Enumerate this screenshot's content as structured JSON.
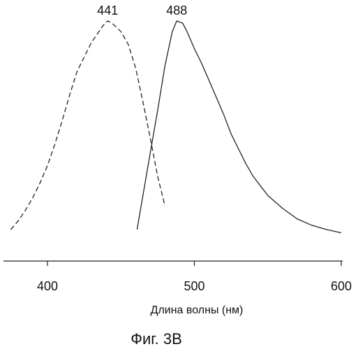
{
  "chart_data": {
    "type": "line",
    "xlabel": "Длина волны (нм)",
    "ylabel": "",
    "title": "",
    "caption": "Фиг. 3B",
    "xlim": [
      374,
      600
    ],
    "ylim": [
      0,
      1
    ],
    "xticks": [
      400,
      500,
      600
    ],
    "y_axis_visible": false,
    "grid": false,
    "legend": "none",
    "series": [
      {
        "style": "dashed",
        "color": "#222222",
        "peak_label": "441",
        "x": [
          375,
          380,
          385,
          390,
          395,
          400,
          405,
          410,
          415,
          420,
          425,
          430,
          435,
          438,
          441,
          444,
          447,
          450,
          455,
          460,
          465,
          470,
          475,
          480
        ],
        "y": [
          0.02,
          0.06,
          0.11,
          0.17,
          0.24,
          0.32,
          0.42,
          0.53,
          0.65,
          0.76,
          0.83,
          0.9,
          0.95,
          0.98,
          1.0,
          0.99,
          0.97,
          0.95,
          0.89,
          0.78,
          0.62,
          0.45,
          0.27,
          0.13
        ]
      },
      {
        "style": "solid",
        "color": "#222222",
        "peak_label": "488",
        "x": [
          461,
          465,
          470,
          475,
          480,
          485,
          488,
          492,
          495,
          500,
          505,
          510,
          515,
          520,
          525,
          530,
          535,
          540,
          550,
          560,
          570,
          580,
          590,
          600
        ],
        "y": [
          0.02,
          0.18,
          0.38,
          0.58,
          0.79,
          0.95,
          1.0,
          0.99,
          0.95,
          0.87,
          0.8,
          0.72,
          0.64,
          0.56,
          0.47,
          0.4,
          0.33,
          0.27,
          0.18,
          0.12,
          0.07,
          0.04,
          0.02,
          0.005
        ]
      }
    ]
  }
}
